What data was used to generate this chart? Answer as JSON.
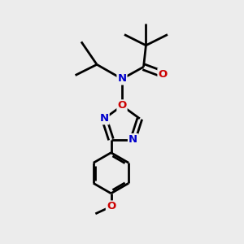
{
  "bg_color": "#ececec",
  "atom_color_N": "#0000cc",
  "atom_color_O": "#cc0000",
  "bond_color": "#000000",
  "bond_width": 2.0,
  "figsize": [
    3.0,
    3.0
  ],
  "dpi": 100,
  "xlim": [
    0.1,
    0.9
  ],
  "ylim": [
    0.0,
    1.0
  ]
}
